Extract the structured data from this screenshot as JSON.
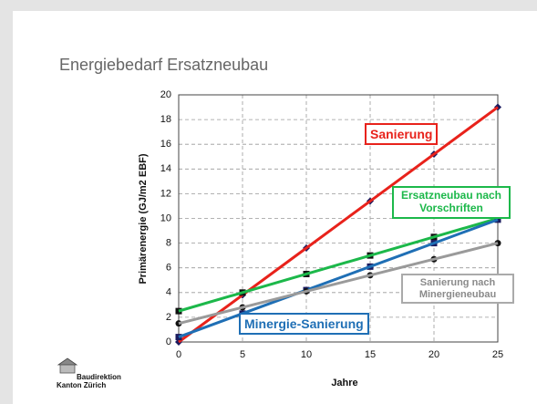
{
  "slide_title": "Energiebedarf Ersatzneubau",
  "logo": {
    "line1": "Baudirektion",
    "line2": "Kanton Zürich"
  },
  "chart_data": {
    "type": "line",
    "x_label": "Jahre",
    "y_label": "Primärenergie (GJ/m2 EBF)",
    "x": [
      0,
      5,
      10,
      15,
      20,
      25
    ],
    "xlim": [
      0,
      25
    ],
    "xticks": [
      0,
      5,
      10,
      15,
      20,
      25
    ],
    "ylim": [
      0,
      20
    ],
    "yticks": [
      0,
      2,
      4,
      6,
      8,
      10,
      12,
      14,
      16,
      18,
      20
    ],
    "grid": true,
    "series": [
      {
        "name": "Sanierung",
        "color": "#e8221b",
        "marker": "diamond",
        "marker_color": "#1a1a5e",
        "values": [
          0,
          3.8,
          7.6,
          11.4,
          15.2,
          19
        ]
      },
      {
        "name": "Ersatzneubau nach Vorschriften",
        "color": "#1cb84a",
        "marker": "square",
        "marker_color": "#111111",
        "values": [
          2.5,
          4,
          5.5,
          7,
          8.5,
          10
        ]
      },
      {
        "name": "Minergie-Sanierung",
        "color": "#1f6fb5",
        "marker": "square",
        "marker_color": "#1a1a5e",
        "values": [
          0.4,
          2.3,
          4.2,
          6.1,
          8,
          9.9
        ]
      },
      {
        "name": "Sanierung nach Minergieneubau",
        "color": "#9a9a9a",
        "marker": "circle",
        "marker_color": "#111111",
        "values": [
          1.5,
          2.8,
          4.1,
          5.4,
          6.7,
          8
        ]
      }
    ]
  }
}
